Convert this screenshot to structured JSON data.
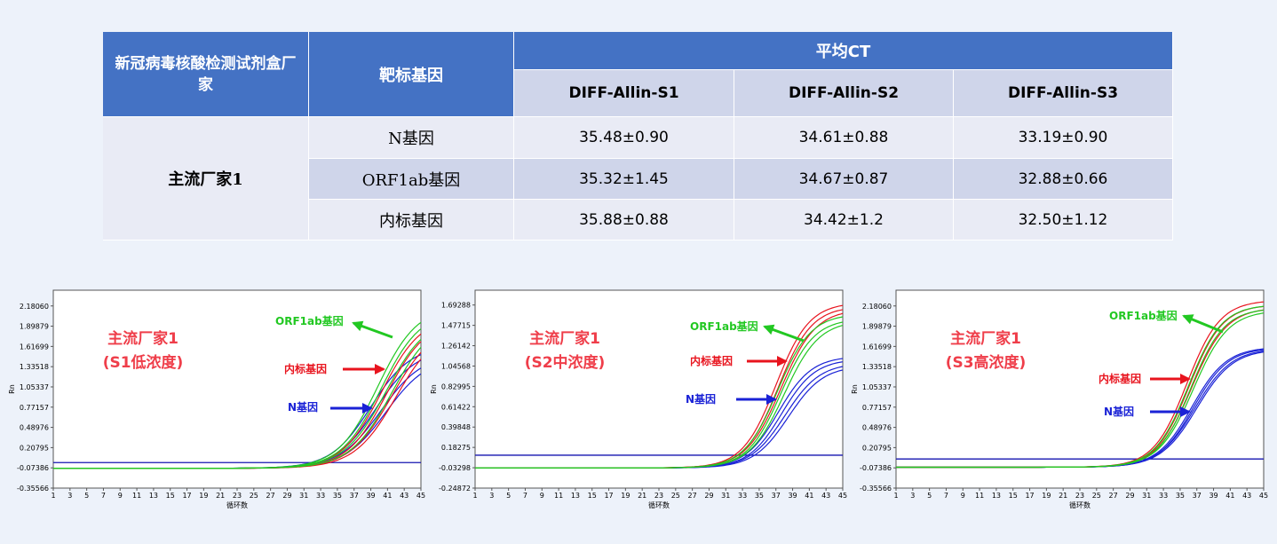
{
  "table": {
    "header": {
      "col1": "新冠病毒核酸检测试剂盒厂家",
      "col2": "靶标基因",
      "group": "平均CT",
      "samples": [
        "DIFF-Allin-S1",
        "DIFF-Allin-S2",
        "DIFF-Allin-S3"
      ]
    },
    "manufacturer": "主流厂家1",
    "rows": [
      {
        "gene": "N基因",
        "values": [
          "35.48±0.90",
          "34.61±0.88",
          "33.19±0.90"
        ]
      },
      {
        "gene": "ORF1ab基因",
        "values": [
          "35.32±1.45",
          "34.67±0.87",
          "32.88±0.66"
        ]
      },
      {
        "gene": "内标基因",
        "values": [
          "35.88±0.88",
          "34.42±1.2",
          "32.50±1.12"
        ]
      }
    ]
  },
  "colors": {
    "header_bg": "#4472c4",
    "subheader_bg": "#cfd5ea",
    "row_light": "#e9ebf5",
    "label_red": "#ef3e4a",
    "orf1ab": "#22c822",
    "internal": "#e8141e",
    "n_gene": "#1a22d6",
    "threshold": "#1515b0"
  },
  "chart_data": [
    {
      "type": "line",
      "label_lines": [
        "主流厂家1",
        "(S1低浓度)"
      ],
      "xlabel": "循环数",
      "ylabel": "Rn",
      "x_ticks": [
        1,
        3,
        5,
        7,
        9,
        11,
        13,
        15,
        17,
        19,
        21,
        23,
        25,
        27,
        29,
        31,
        33,
        35,
        37,
        39,
        41,
        43,
        45
      ],
      "x_tick_labels": [
        "1",
        "3",
        "5",
        "7",
        "9",
        "11",
        "13",
        "15",
        "17",
        "19",
        "21",
        "23",
        "25",
        "27",
        "29",
        "31",
        "33",
        "35",
        "37",
        "39",
        "41",
        "43",
        "45"
      ],
      "xlim": [
        1,
        45
      ],
      "y_ticks": [
        2.1806,
        1.89879,
        1.61699,
        1.33518,
        1.05337,
        0.77157,
        0.48976,
        0.20795,
        -0.07386,
        -0.35566
      ],
      "y_tick_labels": [
        "2.18060",
        "1.89879",
        "1.61699",
        "1.33518",
        "1.05337",
        "0.77157",
        "0.48976",
        "0.20795",
        "-0.07386",
        "-0.35566"
      ],
      "ylim": [
        -0.35566,
        2.4
      ],
      "threshold": 0.0,
      "baseline": -0.08,
      "series": [
        {
          "name": "ORF1ab基因",
          "color": "#22c822",
          "curves": [
            {
              "ct": 39.8,
              "plateau": 2.18,
              "k": 0.42
            },
            {
              "ct": 40.2,
              "plateau": 2.12,
              "k": 0.42
            },
            {
              "ct": 40.8,
              "plateau": 2.05,
              "k": 0.4
            },
            {
              "ct": 41.5,
              "plateau": 2.02,
              "k": 0.4
            }
          ]
        },
        {
          "name": "内标基因",
          "color": "#e8141e",
          "curves": [
            {
              "ct": 40.3,
              "plateau": 2.05,
              "k": 0.42
            },
            {
              "ct": 40.9,
              "plateau": 2.0,
              "k": 0.42
            },
            {
              "ct": 41.5,
              "plateau": 1.93,
              "k": 0.4
            },
            {
              "ct": 42.0,
              "plateau": 1.9,
              "k": 0.4
            }
          ]
        },
        {
          "name": "N基因",
          "color": "#1a22d6",
          "curves": [
            {
              "ct": 39.0,
              "plateau": 1.63,
              "k": 0.42
            },
            {
              "ct": 39.6,
              "plateau": 1.58,
              "k": 0.42
            },
            {
              "ct": 40.2,
              "plateau": 1.52,
              "k": 0.4
            },
            {
              "ct": 40.8,
              "plateau": 1.48,
              "k": 0.4
            }
          ]
        }
      ],
      "annotations": [
        {
          "text": "ORF1ab基因",
          "color": "#22c822"
        },
        {
          "text": "内标基因",
          "color": "#e8141e"
        },
        {
          "text": "N基因",
          "color": "#1a22d6"
        }
      ]
    },
    {
      "type": "line",
      "label_lines": [
        "主流厂家1",
        "(S2中浓度)"
      ],
      "xlabel": "循环数",
      "ylabel": "Rn",
      "x_ticks": [
        1,
        3,
        5,
        7,
        9,
        11,
        13,
        15,
        17,
        19,
        21,
        23,
        25,
        27,
        29,
        31,
        33,
        35,
        37,
        39,
        41,
        43,
        45
      ],
      "x_tick_labels": [
        "1",
        "3",
        "5",
        "7",
        "9",
        "11",
        "13",
        "15",
        "17",
        "19",
        "21",
        "23",
        "25",
        "27",
        "29",
        "31",
        "33",
        "35",
        "37",
        "39",
        "41",
        "43",
        "45"
      ],
      "xlim": [
        1,
        45
      ],
      "y_ticks": [
        1.69288,
        1.47715,
        1.26142,
        1.04568,
        0.82995,
        0.61422,
        0.39848,
        0.18275,
        -0.03298,
        -0.24872
      ],
      "y_tick_labels": [
        "1.69288",
        "1.47715",
        "1.26142",
        "1.04568",
        "0.82995",
        "0.61422",
        "0.39848",
        "0.18275",
        "-0.03298",
        "-0.24872"
      ],
      "ylim": [
        -0.24872,
        1.85
      ],
      "threshold": 0.1,
      "baseline": -0.035,
      "series": [
        {
          "name": "ORF1ab基因",
          "color": "#22c822",
          "curves": [
            {
              "ct": 37.2,
              "plateau": 1.6,
              "k": 0.5
            },
            {
              "ct": 37.6,
              "plateau": 1.55,
              "k": 0.5
            },
            {
              "ct": 38.0,
              "plateau": 1.53,
              "k": 0.48
            }
          ]
        },
        {
          "name": "内标基因",
          "color": "#e8141e",
          "curves": [
            {
              "ct": 37.0,
              "plateau": 1.72,
              "k": 0.5
            },
            {
              "ct": 37.3,
              "plateau": 1.68,
              "k": 0.5
            },
            {
              "ct": 37.6,
              "plateau": 1.65,
              "k": 0.48
            }
          ]
        },
        {
          "name": "N基因",
          "color": "#1a22d6",
          "curves": [
            {
              "ct": 37.3,
              "plateau": 1.15,
              "k": 0.5
            },
            {
              "ct": 37.7,
              "plateau": 1.12,
              "k": 0.5
            },
            {
              "ct": 38.1,
              "plateau": 1.08,
              "k": 0.48
            },
            {
              "ct": 38.5,
              "plateau": 1.05,
              "k": 0.48
            }
          ]
        }
      ],
      "annotations": [
        {
          "text": "ORF1ab基因",
          "color": "#22c822"
        },
        {
          "text": "内标基因",
          "color": "#e8141e"
        },
        {
          "text": "N基因",
          "color": "#1a22d6"
        }
      ]
    },
    {
      "type": "line",
      "label_lines": [
        "主流厂家1",
        "(S3高浓度)"
      ],
      "xlabel": "循环数",
      "ylabel": "Rn",
      "x_ticks": [
        1,
        3,
        5,
        7,
        9,
        11,
        13,
        15,
        17,
        19,
        21,
        23,
        25,
        27,
        29,
        31,
        33,
        35,
        37,
        39,
        41,
        43,
        45
      ],
      "x_tick_labels": [
        "1",
        "3",
        "5",
        "7",
        "9",
        "11",
        "13",
        "15",
        "17",
        "19",
        "21",
        "23",
        "25",
        "27",
        "29",
        "31",
        "33",
        "35",
        "37",
        "39",
        "41",
        "43",
        "45"
      ],
      "xlim": [
        1,
        45
      ],
      "y_ticks": [
        2.1806,
        1.89879,
        1.61699,
        1.33518,
        1.05337,
        0.77157,
        0.48976,
        0.20795,
        -0.07386,
        -0.35566
      ],
      "y_tick_labels": [
        "2.18060",
        "1.89879",
        "1.61699",
        "1.33518",
        "1.05337",
        "0.77157",
        "0.48976",
        "0.20795",
        "-0.07386",
        "-0.35566"
      ],
      "ylim": [
        -0.35566,
        2.4
      ],
      "threshold": 0.05,
      "baseline": -0.065,
      "series": [
        {
          "name": "ORF1ab基因",
          "color": "#22c822",
          "curves": [
            {
              "ct": 36.0,
              "plateau": 2.2,
              "k": 0.5
            },
            {
              "ct": 36.3,
              "plateau": 2.15,
              "k": 0.5
            },
            {
              "ct": 36.6,
              "plateau": 2.12,
              "k": 0.48
            }
          ]
        },
        {
          "name": "内标基因",
          "color": "#e8141e",
          "curves": [
            {
              "ct": 35.8,
              "plateau": 2.26,
              "k": 0.5
            },
            {
              "ct": 36.1,
              "plateau": 2.2,
              "k": 0.5
            },
            {
              "ct": 36.4,
              "plateau": 2.16,
              "k": 0.48
            }
          ]
        },
        {
          "name": "N基因",
          "color": "#1a22d6",
          "curves": [
            {
              "ct": 36.4,
              "plateau": 1.61,
              "k": 0.48
            },
            {
              "ct": 36.6,
              "plateau": 1.6,
              "k": 0.48
            },
            {
              "ct": 36.8,
              "plateau": 1.59,
              "k": 0.46
            },
            {
              "ct": 37.0,
              "plateau": 1.58,
              "k": 0.46
            }
          ]
        }
      ],
      "annotations": [
        {
          "text": "ORF1ab基因",
          "color": "#22c822"
        },
        {
          "text": "内标基因",
          "color": "#e8141e"
        },
        {
          "text": "N基因",
          "color": "#1a22d6"
        }
      ]
    }
  ]
}
